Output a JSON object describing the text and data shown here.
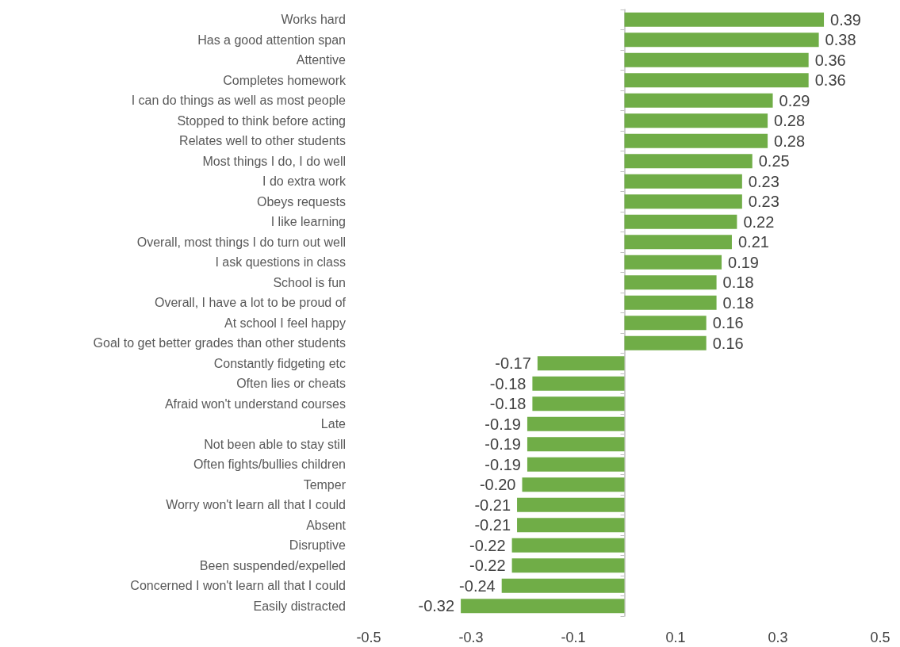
{
  "chart_data": {
    "type": "bar",
    "orientation": "horizontal",
    "categories": [
      "Works hard",
      "Has a good attention span",
      "Attentive",
      "Completes homework",
      "I can do things as well as most people",
      "Stopped to think before acting",
      "Relates well to other students",
      "Most things I do, I do well",
      "I do extra work",
      "Obeys requests",
      "I like learning",
      "Overall, most things I do turn out well",
      "I ask questions in class",
      "School is fun",
      "Overall, I have a lot to be proud of",
      "At school I feel happy",
      "Goal to get better grades than other students",
      "Constantly fidgeting etc",
      "Often lies or cheats",
      "Afraid won't understand courses",
      "Late",
      "Not been able to stay still",
      "Often fights/bullies children",
      "Temper",
      "Worry won't learn all that I could",
      "Absent",
      "Disruptive",
      "Been suspended/expelled",
      "Concerned I won't learn all that I could",
      "Easily distracted"
    ],
    "values": [
      0.39,
      0.38,
      0.36,
      0.36,
      0.29,
      0.28,
      0.28,
      0.25,
      0.23,
      0.23,
      0.22,
      0.21,
      0.19,
      0.18,
      0.18,
      0.16,
      0.16,
      -0.17,
      -0.18,
      -0.18,
      -0.19,
      -0.19,
      -0.19,
      -0.2,
      -0.21,
      -0.21,
      -0.22,
      -0.22,
      -0.24,
      -0.32
    ],
    "value_labels": [
      "0.39",
      "0.38",
      "0.36",
      "0.36",
      "0.29",
      "0.28",
      "0.28",
      "0.25",
      "0.23",
      "0.23",
      "0.22",
      "0.21",
      "0.19",
      "0.18",
      "0.18",
      "0.16",
      "0.16",
      "-0.17",
      "-0.18",
      "-0.18",
      "-0.19",
      "-0.19",
      "-0.19",
      "-0.20",
      "-0.21",
      "-0.21",
      "-0.22",
      "-0.22",
      "-0.24",
      "-0.32"
    ],
    "color": "#70ad47",
    "xlim": [
      -0.5,
      0.5
    ],
    "xticks": [
      -0.5,
      -0.3,
      -0.1,
      0.1,
      0.3,
      0.5
    ],
    "grid": false
  }
}
